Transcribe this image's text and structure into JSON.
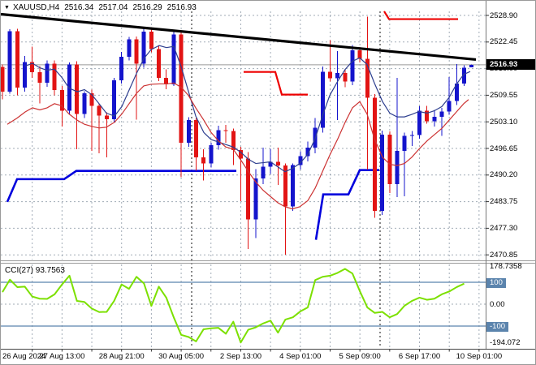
{
  "header": {
    "symbol_period": "XAUUSD,H4",
    "open": "2516.34",
    "high": "2517.04",
    "low": "2516.29",
    "close": "2516.93"
  },
  "price_axis": {
    "current": "2516.93"
  },
  "indicator": {
    "label": "CCI(27) 93.7563",
    "upper_level": "100",
    "lower_level": "-100"
  },
  "colors": {
    "bull": "#1414cc",
    "bear": "#e21414",
    "ma_fast": "#2e3f8f",
    "ma_slow": "#cc3333",
    "step_support": "#0000dd",
    "step_resistance": "#ee0000",
    "trendline": "#000000",
    "cci_line": "#7ce000",
    "cci_level": "#5b84ad",
    "grid": "#8a97a5",
    "price_line": "#999999",
    "tag_bg": "#000000",
    "cci_tag_bg": "#5b84ad"
  },
  "chart_data": {
    "type": "candlestick",
    "title": "XAUUSD,H4 2516.34 2517.04 2516.29 2516.93",
    "symbol": "XAUUSD",
    "timeframe": "H4",
    "y_axis": {
      "tick_labels": [
        "2528.90",
        "2522.45",
        "2516.00",
        "2509.55",
        "2503.10",
        "2496.65",
        "2490.20",
        "2483.75",
        "2477.30",
        "2470.85"
      ],
      "range": [
        2470.85,
        2528.9
      ],
      "current_price": 2516.93
    },
    "x_axis": {
      "tick_labels": [
        "26 Aug 2024",
        "27 Aug 13:00",
        "28 Aug 21:00",
        "30 Aug 05:00",
        "2 Sep 13:00",
        "4 Sep 01:00",
        "5 Sep 09:00",
        "6 Sep 17:00",
        "10 Sep 01:00"
      ],
      "bars_per_tick": 8
    },
    "candles": [
      [
        2516.4,
        2517.0,
        2508.5,
        2510.4
      ],
      [
        2510.4,
        2525.6,
        2509.9,
        2525.1
      ],
      [
        2525.1,
        2525.7,
        2509.5,
        2511.4
      ],
      [
        2511.4,
        2519.1,
        2510.4,
        2517.6
      ],
      [
        2517.6,
        2521.3,
        2513.8,
        2515.1
      ],
      [
        2515.1,
        2516.6,
        2507.6,
        2512.6
      ],
      [
        2512.6,
        2518.0,
        2511.6,
        2517.2
      ],
      [
        2517.2,
        2518.0,
        2509.5,
        2510.8
      ],
      [
        2510.8,
        2511.8,
        2502.0,
        2505.8
      ],
      [
        2505.8,
        2517.5,
        2504.8,
        2517.0
      ],
      [
        2517.0,
        2517.8,
        2496.5,
        2505.0
      ],
      [
        2505.0,
        2510.5,
        2504.0,
        2510.0
      ],
      [
        2510.0,
        2510.9,
        2496.1,
        2507.0
      ],
      [
        2507.0,
        2507.6,
        2495.5,
        2504.6
      ],
      [
        2504.6,
        2505.4,
        2494.5,
        2503.7
      ],
      [
        2503.7,
        2513.8,
        2502.9,
        2513.2
      ],
      [
        2513.2,
        2520.1,
        2512.4,
        2518.9
      ],
      [
        2518.9,
        2523.7,
        2518.0,
        2523.1
      ],
      [
        2523.1,
        2523.8,
        2503.6,
        2517.2
      ],
      [
        2517.2,
        2526.1,
        2516.2,
        2525.0
      ],
      [
        2525.0,
        2526.0,
        2520.0,
        2520.7
      ],
      [
        2520.7,
        2521.5,
        2513.0,
        2513.8
      ],
      [
        2513.8,
        2515.8,
        2511.0,
        2512.2
      ],
      [
        2512.2,
        2525.2,
        2511.8,
        2524.3
      ],
      [
        2524.3,
        2524.8,
        2489.7,
        2498.0
      ],
      [
        2498.0,
        2504.2,
        2497.0,
        2503.5
      ],
      [
        2503.5,
        2504.0,
        2491.2,
        2494.5
      ],
      [
        2494.5,
        2496.5,
        2488.9,
        2493.0
      ],
      [
        2493.0,
        2498.0,
        2492.0,
        2497.4
      ],
      [
        2497.4,
        2502.2,
        2496.4,
        2501.1
      ],
      [
        2501.1,
        2502.4,
        2498.0,
        2500.9
      ],
      [
        2500.9,
        2501.5,
        2492.6,
        2496.3
      ],
      [
        2496.3,
        2497.0,
        2483.9,
        2494.2
      ],
      [
        2494.2,
        2495.8,
        2472.3,
        2479.4
      ],
      [
        2479.4,
        2491.6,
        2474.9,
        2489.4
      ],
      [
        2489.4,
        2496.8,
        2488.0,
        2492.2
      ],
      [
        2492.2,
        2496.6,
        2490.5,
        2493.4
      ],
      [
        2493.4,
        2496.8,
        2487.8,
        2492.5
      ],
      [
        2492.5,
        2493.0,
        2470.9,
        2482.6
      ],
      [
        2482.6,
        2493.0,
        2481.5,
        2492.6
      ],
      [
        2492.6,
        2496.0,
        2491.5,
        2494.8
      ],
      [
        2494.8,
        2498.3,
        2493.5,
        2496.8
      ],
      [
        2496.8,
        2504.0,
        2495.5,
        2501.7
      ],
      [
        2501.7,
        2516.5,
        2500.5,
        2515.2
      ],
      [
        2515.2,
        2522.9,
        2512.9,
        2513.7
      ],
      [
        2513.7,
        2520.2,
        2503.5,
        2514.9
      ],
      [
        2514.9,
        2515.9,
        2511.5,
        2512.9
      ],
      [
        2512.9,
        2521.7,
        2512.0,
        2520.4
      ],
      [
        2520.4,
        2521.2,
        2517.5,
        2518.4
      ],
      [
        2518.4,
        2528.6,
        2491.5,
        2508.9
      ],
      [
        2508.9,
        2509.8,
        2479.8,
        2481.5
      ],
      [
        2481.5,
        2501.0,
        2480.5,
        2500.0
      ],
      [
        2500.0,
        2500.8,
        2485.8,
        2488.0
      ],
      [
        2488.0,
        2513.8,
        2484.9,
        2496.1
      ],
      [
        2496.1,
        2500.5,
        2485.0,
        2499.7
      ],
      [
        2499.7,
        2500.9,
        2497.2,
        2499.9
      ],
      [
        2499.9,
        2506.9,
        2499.0,
        2505.8
      ],
      [
        2505.8,
        2507.0,
        2502.6,
        2503.2
      ],
      [
        2503.2,
        2506.0,
        2502.0,
        2504.3
      ],
      [
        2504.3,
        2506.5,
        2499.7,
        2505.6
      ],
      [
        2505.6,
        2514.0,
        2504.8,
        2508.2
      ],
      [
        2508.2,
        2517.1,
        2507.2,
        2512.4
      ],
      [
        2512.4,
        2516.8,
        2511.8,
        2516.2
      ],
      [
        2516.34,
        2517.04,
        2516.29,
        2516.93
      ]
    ],
    "ma_fast": [
      [
        30,
        2516.6
      ],
      [
        39,
        2517.3
      ],
      [
        48,
        2516.2
      ],
      [
        57,
        2515.6
      ],
      [
        66,
        2515.9
      ],
      [
        75,
        2513.9
      ],
      [
        84,
        2511.3
      ],
      [
        94,
        2510.4
      ],
      [
        103,
        2510.9
      ],
      [
        112,
        2509.7
      ],
      [
        121,
        2507.5
      ],
      [
        130,
        2505.2
      ],
      [
        140,
        2504.5
      ],
      [
        149,
        2506.8
      ],
      [
        158,
        2510.8
      ],
      [
        167,
        2514.8
      ],
      [
        176,
        2518.4
      ],
      [
        185,
        2520.6
      ],
      [
        195,
        2521.6
      ],
      [
        204,
        2521.1
      ],
      [
        213,
        2521.4
      ],
      [
        222,
        2516.5
      ],
      [
        231,
        2510.5
      ],
      [
        240,
        2504.5
      ],
      [
        250,
        2500.5
      ],
      [
        259,
        2498.8
      ],
      [
        268,
        2498.2
      ],
      [
        277,
        2497.6
      ],
      [
        286,
        2497.0
      ],
      [
        295,
        2495.8
      ],
      [
        305,
        2494.0
      ],
      [
        314,
        2493.0
      ],
      [
        323,
        2493.2
      ],
      [
        332,
        2493.4
      ],
      [
        341,
        2492.2
      ],
      [
        350,
        2491.0
      ],
      [
        359,
        2491.8
      ],
      [
        368,
        2493.0
      ],
      [
        378,
        2495.2
      ],
      [
        387,
        2499.0
      ],
      [
        396,
        2504.5
      ],
      [
        405,
        2509.5
      ],
      [
        415,
        2513.0
      ],
      [
        424,
        2515.8
      ],
      [
        433,
        2517.8
      ],
      [
        442,
        2518.6
      ],
      [
        451,
        2517.0
      ],
      [
        460,
        2512.5
      ],
      [
        470,
        2508.0
      ],
      [
        479,
        2505.2
      ],
      [
        488,
        2504.3
      ],
      [
        497,
        2504.3
      ],
      [
        506,
        2504.9
      ],
      [
        515,
        2505.6
      ],
      [
        525,
        2505.2
      ],
      [
        534,
        2505.8
      ],
      [
        543,
        2506.8
      ],
      [
        552,
        2509.0
      ],
      [
        561,
        2512.2
      ],
      [
        570,
        2514.6
      ],
      [
        578,
        2515.3
      ]
    ],
    "ma_slow": [
      [
        8,
        2502.5
      ],
      [
        20,
        2504.0
      ],
      [
        30,
        2505.5
      ],
      [
        39,
        2506.5
      ],
      [
        48,
        2506.0
      ],
      [
        57,
        2506.5
      ],
      [
        66,
        2507.5
      ],
      [
        75,
        2507.0
      ],
      [
        84,
        2505.0
      ],
      [
        94,
        2503.5
      ],
      [
        103,
        2502.5
      ],
      [
        112,
        2502.0
      ],
      [
        121,
        2501.6
      ],
      [
        130,
        2501.8
      ],
      [
        140,
        2503.0
      ],
      [
        149,
        2505.0
      ],
      [
        158,
        2507.5
      ],
      [
        167,
        2510.0
      ],
      [
        176,
        2511.8
      ],
      [
        185,
        2512.2
      ],
      [
        195,
        2512.3
      ],
      [
        204,
        2512.3
      ],
      [
        213,
        2512.5
      ],
      [
        222,
        2511.5
      ],
      [
        231,
        2509.5
      ],
      [
        240,
        2506.5
      ],
      [
        250,
        2503.5
      ],
      [
        259,
        2500.5
      ],
      [
        268,
        2498.5
      ],
      [
        277,
        2497.0
      ],
      [
        286,
        2496.5
      ],
      [
        295,
        2494.0
      ],
      [
        305,
        2491.0
      ],
      [
        314,
        2488.5
      ],
      [
        323,
        2486.5
      ],
      [
        332,
        2485.0
      ],
      [
        341,
        2483.5
      ],
      [
        350,
        2482.5
      ],
      [
        359,
        2482.0
      ],
      [
        368,
        2482.5
      ],
      [
        378,
        2484.0
      ],
      [
        387,
        2487.0
      ],
      [
        396,
        2491.0
      ],
      [
        405,
        2495.0
      ],
      [
        415,
        2499.0
      ],
      [
        424,
        2503.0
      ],
      [
        433,
        2506.5
      ],
      [
        442,
        2508.0
      ],
      [
        451,
        2505.0
      ],
      [
        460,
        2499.0
      ],
      [
        470,
        2494.5
      ],
      [
        479,
        2492.8
      ],
      [
        488,
        2492.5
      ],
      [
        497,
        2493.0
      ],
      [
        506,
        2494.5
      ],
      [
        515,
        2496.5
      ],
      [
        525,
        2498.5
      ],
      [
        534,
        2500.0
      ],
      [
        543,
        2501.5
      ],
      [
        552,
        2503.5
      ],
      [
        561,
        2505.5
      ],
      [
        570,
        2507.5
      ],
      [
        576,
        2508.5
      ]
    ],
    "trendline": [
      [
        0,
        2529.2
      ],
      [
        585,
        2518.2
      ]
    ],
    "support_steps": [
      [
        [
          8,
          2483.7
        ],
        [
          20,
          2489.2
        ],
        [
          78,
          2489.2
        ],
        [
          93,
          2491.2
        ],
        [
          290,
          2491.2
        ]
      ],
      [
        [
          388,
          2474.5
        ],
        [
          397,
          2485.5
        ],
        [
          428,
          2485.5
        ],
        [
          442,
          2491.4
        ],
        [
          466,
          2491.4
        ]
      ]
    ],
    "resistance_steps": [
      [
        [
          299,
          2515.2
        ],
        [
          338,
          2515.2
        ],
        [
          346,
          2509.7
        ],
        [
          378,
          2509.7
        ]
      ],
      [
        [
          472,
          2529.9
        ],
        [
          478,
          2528.0
        ],
        [
          563,
          2528.0
        ]
      ]
    ],
    "period_separators_x": [
      235,
      467
    ],
    "cci": {
      "label": "CCI(27)",
      "current": 93.7563,
      "levels": [
        100,
        -100
      ],
      "scale_max": 178.7358,
      "scale_min": -194.072,
      "axis_labels": [
        "178.7358",
        "100",
        "0.00",
        "-100",
        "-194.072"
      ],
      "values": [
        55,
        112,
        78,
        80,
        35,
        25,
        24,
        45,
        90,
        130,
        15,
        10,
        -20,
        -36,
        -35,
        15,
        90,
        70,
        125,
        95,
        -8,
        80,
        30,
        -60,
        -140,
        -150,
        -170,
        -115,
        -110,
        -108,
        -135,
        -80,
        -175,
        -117,
        -106,
        -88,
        -75,
        -130,
        -70,
        -60,
        -33,
        -15,
        110,
        125,
        130,
        143,
        161,
        140,
        59,
        -15,
        -40,
        -35,
        -60,
        -45,
        -7,
        15,
        30,
        20,
        25,
        45,
        58,
        78,
        93.76
      ]
    }
  }
}
